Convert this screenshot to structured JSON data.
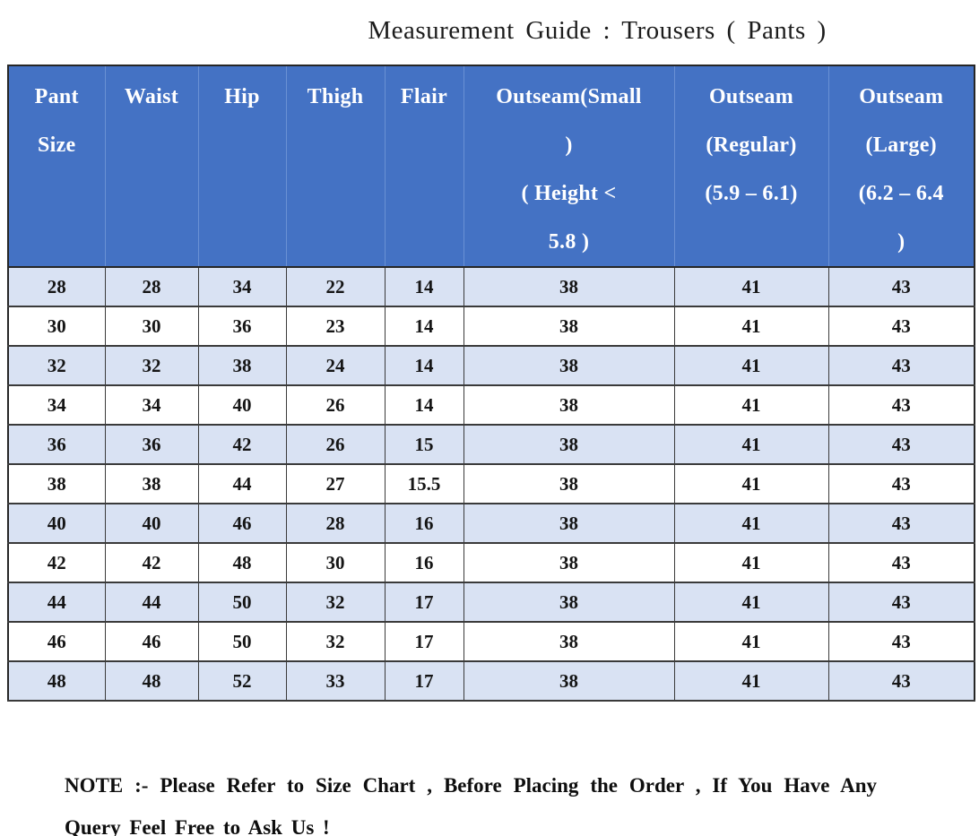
{
  "title": "Measurement Guide : Trousers ( Pants )",
  "table": {
    "column_keys": [
      "pant-size",
      "waist",
      "hip",
      "thigh",
      "flair",
      "outseam-small",
      "outseam-regular",
      "outseam-large"
    ],
    "columns": [
      "Pant\nSize",
      "Waist",
      "Hip",
      "Thigh",
      "Flair",
      "Outseam(Small\n)\n( Height <\n5.8 )",
      "Outseam\n(Regular)\n(5.9 – 6.1)",
      "Outseam\n(Large)\n(6.2 – 6.4\n)"
    ],
    "rows": [
      [
        "28",
        "28",
        "34",
        "22",
        "14",
        "38",
        "41",
        "43"
      ],
      [
        "30",
        "30",
        "36",
        "23",
        "14",
        "38",
        "41",
        "43"
      ],
      [
        "32",
        "32",
        "38",
        "24",
        "14",
        "38",
        "41",
        "43"
      ],
      [
        "34",
        "34",
        "40",
        "26",
        "14",
        "38",
        "41",
        "43"
      ],
      [
        "36",
        "36",
        "42",
        "26",
        "15",
        "38",
        "41",
        "43"
      ],
      [
        "38",
        "38",
        "44",
        "27",
        "15.5",
        "38",
        "41",
        "43"
      ],
      [
        "40",
        "40",
        "46",
        "28",
        "16",
        "38",
        "41",
        "43"
      ],
      [
        "42",
        "42",
        "48",
        "30",
        "16",
        "38",
        "41",
        "43"
      ],
      [
        "44",
        "44",
        "50",
        "32",
        "17",
        "38",
        "41",
        "43"
      ],
      [
        "46",
        "46",
        "50",
        "32",
        "17",
        "38",
        "41",
        "43"
      ],
      [
        "48",
        "48",
        "52",
        "33",
        "17",
        "38",
        "41",
        "43"
      ]
    ]
  },
  "note": "NOTE :- Please Refer to Size Chart , Before Placing the Order , If You Have Any Query Feel Free to Ask Us !",
  "colors": {
    "header_bg": "#4472C4",
    "header_text": "#FFFFFF",
    "row_alt_bg": "#D9E2F3",
    "row_bg": "#FFFFFF",
    "grid_border": "#3A3A3A"
  }
}
